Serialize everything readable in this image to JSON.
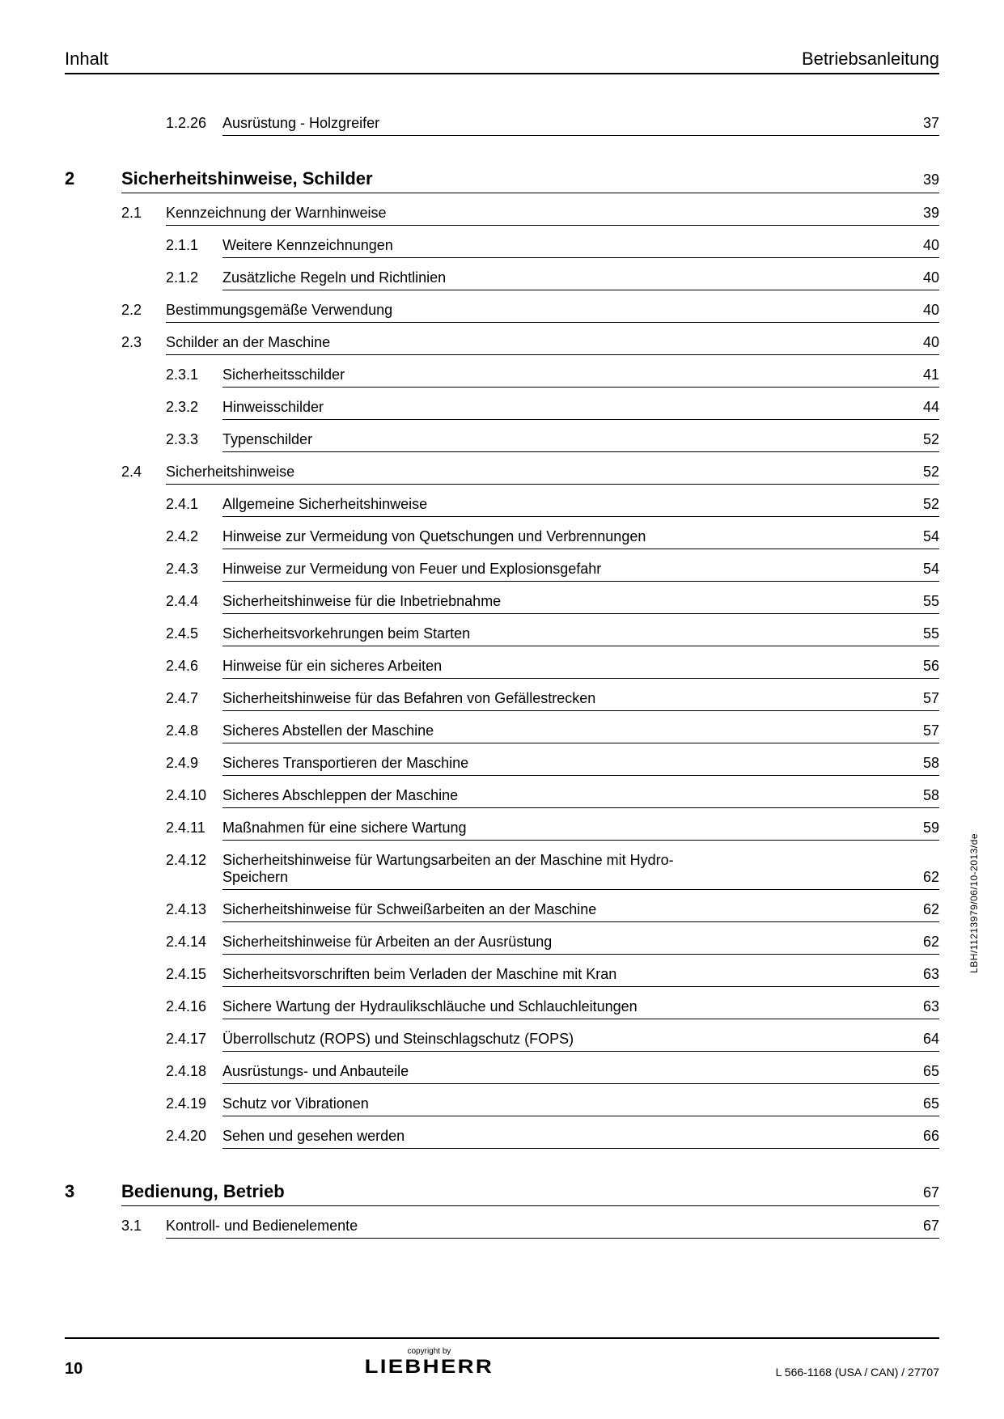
{
  "header": {
    "left": "Inhalt",
    "right": "Betriebsanleitung"
  },
  "sideText": "LBH/11213979/06/10-2013/de",
  "footer": {
    "pageNum": "10",
    "copyright": "copyright by",
    "logo": "LIEBHERR",
    "docId": "L 566-1168 (USA / CAN) / 27707"
  },
  "entries": [
    {
      "level": 3,
      "num": "1.2.26",
      "title": "Ausrüstung - Holzgreifer",
      "pg": "37"
    },
    {
      "level": 1,
      "num": "2",
      "title": "Sicherheitshinweise, Schilder",
      "pg": "39"
    },
    {
      "level": 2,
      "num": "2.1",
      "title": "Kennzeichnung der Warnhinweise",
      "pg": "39"
    },
    {
      "level": 3,
      "num": "2.1.1",
      "title": "Weitere Kennzeichnungen",
      "pg": "40"
    },
    {
      "level": 3,
      "num": "2.1.2",
      "title": "Zusätzliche Regeln und Richtlinien",
      "pg": "40"
    },
    {
      "level": 2,
      "num": "2.2",
      "title": "Bestimmungsgemäße Verwendung",
      "pg": "40"
    },
    {
      "level": 2,
      "num": "2.3",
      "title": "Schilder an der Maschine",
      "pg": "40"
    },
    {
      "level": 3,
      "num": "2.3.1",
      "title": "Sicherheitsschilder",
      "pg": "41"
    },
    {
      "level": 3,
      "num": "2.3.2",
      "title": "Hinweisschilder",
      "pg": "44"
    },
    {
      "level": 3,
      "num": "2.3.3",
      "title": "Typenschilder",
      "pg": "52"
    },
    {
      "level": 2,
      "num": "2.4",
      "title": "Sicherheitshinweise",
      "pg": "52"
    },
    {
      "level": 3,
      "num": "2.4.1",
      "title": "Allgemeine Sicherheitshinweise",
      "pg": "52"
    },
    {
      "level": 3,
      "num": "2.4.2",
      "title": "Hinweise zur Vermeidung von Quetschungen und Verbrennungen",
      "pg": "54"
    },
    {
      "level": 3,
      "num": "2.4.3",
      "title": "Hinweise zur Vermeidung von Feuer und Explosionsgefahr",
      "pg": "54"
    },
    {
      "level": 3,
      "num": "2.4.4",
      "title": "Sicherheitshinweise für die Inbetriebnahme",
      "pg": "55"
    },
    {
      "level": 3,
      "num": "2.4.5",
      "title": "Sicherheitsvorkehrungen beim Starten",
      "pg": "55"
    },
    {
      "level": 3,
      "num": "2.4.6",
      "title": "Hinweise für ein sicheres Arbeiten",
      "pg": "56"
    },
    {
      "level": 3,
      "num": "2.4.7",
      "title": "Sicherheitshinweise für das Befahren von Gefällestrecken",
      "pg": "57"
    },
    {
      "level": 3,
      "num": "2.4.8",
      "title": "Sicheres Abstellen der Maschine",
      "pg": "57"
    },
    {
      "level": 3,
      "num": "2.4.9",
      "title": "Sicheres Transportieren der Maschine",
      "pg": "58"
    },
    {
      "level": 3,
      "num": "2.4.10",
      "title": "Sicheres Abschleppen der Maschine",
      "pg": "58"
    },
    {
      "level": 3,
      "num": "2.4.11",
      "title": "Maßnahmen für eine sichere Wartung",
      "pg": "59"
    },
    {
      "level": 3,
      "num": "2.4.12",
      "title": "Sicherheitshinweise für Wartungsarbeiten an der Maschine mit Hydro-Speichern",
      "pg": "62"
    },
    {
      "level": 3,
      "num": "2.4.13",
      "title": "Sicherheitshinweise für Schweißarbeiten an der Maschine",
      "pg": "62"
    },
    {
      "level": 3,
      "num": "2.4.14",
      "title": "Sicherheitshinweise für Arbeiten an der Ausrüstung",
      "pg": "62"
    },
    {
      "level": 3,
      "num": "2.4.15",
      "title": "Sicherheitsvorschriften beim Verladen der Maschine mit Kran",
      "pg": "63"
    },
    {
      "level": 3,
      "num": "2.4.16",
      "title": "Sichere Wartung der Hydraulikschläuche und Schlauchleitungen",
      "pg": "63"
    },
    {
      "level": 3,
      "num": "2.4.17",
      "title": "Überrollschutz (ROPS) und Steinschlagschutz (FOPS)",
      "pg": "64"
    },
    {
      "level": 3,
      "num": "2.4.18",
      "title": "Ausrüstungs- und Anbauteile",
      "pg": "65"
    },
    {
      "level": 3,
      "num": "2.4.19",
      "title": "Schutz vor Vibrationen",
      "pg": "65"
    },
    {
      "level": 3,
      "num": "2.4.20",
      "title": "Sehen und gesehen werden",
      "pg": "66"
    },
    {
      "level": 1,
      "num": "3",
      "title": "Bedienung, Betrieb",
      "pg": "67"
    },
    {
      "level": 2,
      "num": "3.1",
      "title": "Kontroll- und Bedienelemente",
      "pg": "67"
    }
  ]
}
